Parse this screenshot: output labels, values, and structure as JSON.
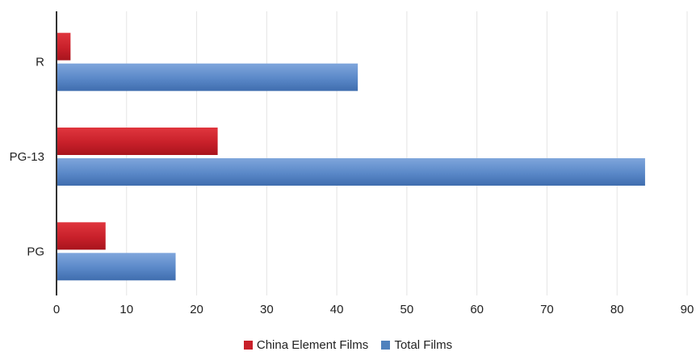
{
  "chart_data": {
    "type": "bar",
    "orientation": "horizontal",
    "categories": [
      "R",
      "PG-13",
      "PG"
    ],
    "series": [
      {
        "name": "China Element Films",
        "values": [
          2,
          23,
          7
        ],
        "color": "#C8202A"
      },
      {
        "name": "Total Films",
        "values": [
          43,
          84,
          17
        ],
        "color": "#4F81BD"
      }
    ],
    "xlim": [
      0,
      90
    ],
    "xticks": [
      "0",
      "10",
      "20",
      "30",
      "40",
      "50",
      "60",
      "70",
      "80",
      "90"
    ],
    "grid": "vertical",
    "legend_position": "bottom-center",
    "title": "",
    "xlabel": "",
    "ylabel": ""
  }
}
